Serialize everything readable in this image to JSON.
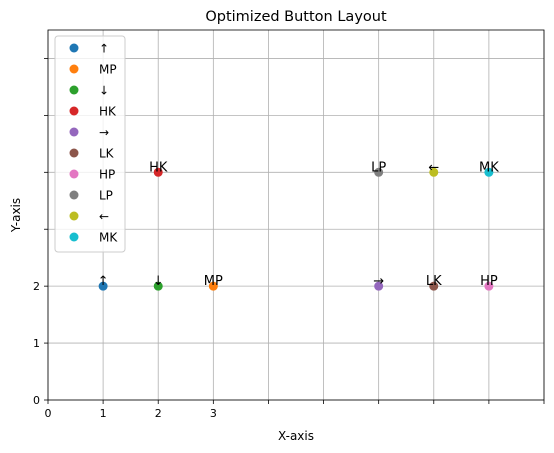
{
  "chart_data": {
    "type": "scatter",
    "title": "Optimized Button Layout",
    "xlabel": "X-axis",
    "ylabel": "Y-axis",
    "xlim": [
      0,
      9
    ],
    "ylim": [
      0,
      6.5
    ],
    "grid": true,
    "legend_position": "top-left",
    "xticks": [
      0,
      1,
      2,
      3,
      4,
      5,
      6,
      7,
      8,
      9
    ],
    "xtick_labels": [
      "0",
      "1",
      "2",
      "3",
      "",
      "",
      "",
      "",
      "",
      ""
    ],
    "yticks": [
      0,
      1,
      2,
      3,
      4,
      5,
      6
    ],
    "ytick_labels": [
      "0",
      "1",
      "2",
      "",
      "",
      "",
      ""
    ],
    "series": [
      {
        "name": "↑",
        "color": "#1f77b4",
        "x": 1,
        "y": 2
      },
      {
        "name": "MP",
        "color": "#ff7f0e",
        "x": 3,
        "y": 2
      },
      {
        "name": "↓",
        "color": "#2ca02c",
        "x": 2,
        "y": 2
      },
      {
        "name": "HK",
        "color": "#d62728",
        "x": 2,
        "y": 4
      },
      {
        "name": "→",
        "color": "#9467bd",
        "x": 6,
        "y": 2
      },
      {
        "name": "LK",
        "color": "#8c564b",
        "x": 7,
        "y": 2
      },
      {
        "name": "HP",
        "color": "#e377c2",
        "x": 8,
        "y": 2
      },
      {
        "name": "LP",
        "color": "#7f7f7f",
        "x": 6,
        "y": 4
      },
      {
        "name": "←",
        "color": "#bcbd22",
        "x": 7,
        "y": 4
      },
      {
        "name": "MK",
        "color": "#17becf",
        "x": 8,
        "y": 4
      }
    ]
  }
}
